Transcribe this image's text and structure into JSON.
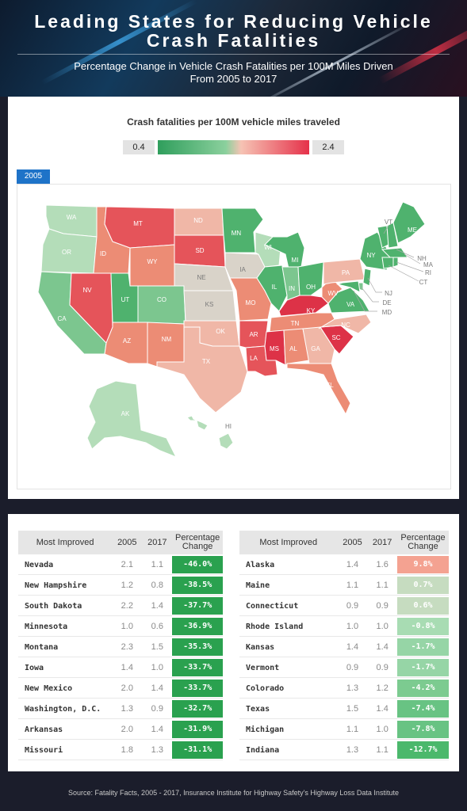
{
  "header": {
    "title_line1": "Leading States for Reducing Vehicle",
    "title_line2": "Crash Fatalities",
    "subtitle_line1": "Percentage Change in Vehicle Crash Fatalities per 100M Miles Driven",
    "subtitle_line2": "From 2005 to 2017"
  },
  "map": {
    "legend_title": "Crash fatalities per 100M vehicle miles traveled",
    "legend_min": "0.4",
    "legend_max": "2.4",
    "year_tab": "2005",
    "colors": {
      "dark_green": "#4fb26e",
      "med_green": "#7cc68f",
      "light_green": "#b4ddb9",
      "neutral": "#d9d3c9",
      "light_pink": "#f0b7a7",
      "salmon": "#ec8c75",
      "red": "#e5545a",
      "dark_red": "#dd3247"
    },
    "state_labels": {
      "WA": "WA",
      "OR": "OR",
      "CA": "CA",
      "ID": "ID",
      "NV": "NV",
      "MT": "MT",
      "WY": "WY",
      "UT": "UT",
      "AZ": "AZ",
      "CO": "CO",
      "NM": "NM",
      "ND": "ND",
      "SD": "SD",
      "NE": "NE",
      "KS": "KS",
      "OK": "OK",
      "TX": "TX",
      "MN": "MN",
      "IA": "IA",
      "MO": "MO",
      "AR": "AR",
      "LA": "LA",
      "WI": "WI",
      "IL": "IL",
      "MI": "MI",
      "IN": "IN",
      "OH": "OH",
      "KY": "KY",
      "TN": "TN",
      "MS": "MS",
      "AL": "AL",
      "GA": "GA",
      "FL": "FL",
      "SC": "SC",
      "NC": "NC",
      "VA": "VA",
      "WV": "WV",
      "PA": "PA",
      "NY": "NY",
      "ME": "ME",
      "VT": "VT",
      "NH": "NH",
      "MA": "MA",
      "RI": "RI",
      "CT": "CT",
      "NJ": "NJ",
      "DE": "DE",
      "MD": "MD",
      "AK": "AK",
      "HI": "HI"
    }
  },
  "tables": {
    "headers": {
      "state": "Most Improved",
      "y2005": "2005",
      "y2017": "2017",
      "pct_line1": "Percentage",
      "pct_line2": "Change"
    },
    "left_rows": [
      {
        "state": "Nevada",
        "v2005": "2.1",
        "v2017": "1.1",
        "pct": "-46.0%",
        "color": "#2aa14f"
      },
      {
        "state": "New Hampshire",
        "v2005": "1.2",
        "v2017": "0.8",
        "pct": "-38.5%",
        "color": "#2aa14f"
      },
      {
        "state": "South Dakota",
        "v2005": "2.2",
        "v2017": "1.4",
        "pct": "-37.7%",
        "color": "#2aa14f"
      },
      {
        "state": "Minnesota",
        "v2005": "1.0",
        "v2017": "0.6",
        "pct": "-36.9%",
        "color": "#2aa14f"
      },
      {
        "state": "Montana",
        "v2005": "2.3",
        "v2017": "1.5",
        "pct": "-35.3%",
        "color": "#2aa14f"
      },
      {
        "state": "Iowa",
        "v2005": "1.4",
        "v2017": "1.0",
        "pct": "-33.7%",
        "color": "#2aa14f"
      },
      {
        "state": "New Mexico",
        "v2005": "2.0",
        "v2017": "1.4",
        "pct": "-33.7%",
        "color": "#2aa14f"
      },
      {
        "state": "Washington, D.C.",
        "v2005": "1.3",
        "v2017": "0.9",
        "pct": "-32.7%",
        "color": "#2aa14f"
      },
      {
        "state": "Arkansas",
        "v2005": "2.0",
        "v2017": "1.4",
        "pct": "-31.9%",
        "color": "#2aa14f"
      },
      {
        "state": "Missouri",
        "v2005": "1.8",
        "v2017": "1.3",
        "pct": "-31.1%",
        "color": "#2aa14f"
      }
    ],
    "right_rows": [
      {
        "state": "Alaska",
        "v2005": "1.4",
        "v2017": "1.6",
        "pct": "9.8%",
        "color": "#f4a291"
      },
      {
        "state": "Maine",
        "v2005": "1.1",
        "v2017": "1.1",
        "pct": "0.7%",
        "color": "#c6dcc0"
      },
      {
        "state": "Connecticut",
        "v2005": "0.9",
        "v2017": "0.9",
        "pct": "0.6%",
        "color": "#c6dcc0"
      },
      {
        "state": "Rhode Island",
        "v2005": "1.0",
        "v2017": "1.0",
        "pct": "-0.8%",
        "color": "#a8dcb3"
      },
      {
        "state": "Kansas",
        "v2005": "1.4",
        "v2017": "1.4",
        "pct": "-1.7%",
        "color": "#96d5a6"
      },
      {
        "state": "Vermont",
        "v2005": "0.9",
        "v2017": "0.9",
        "pct": "-1.7%",
        "color": "#96d5a6"
      },
      {
        "state": "Colorado",
        "v2005": "1.3",
        "v2017": "1.2",
        "pct": "-4.2%",
        "color": "#7ccb90"
      },
      {
        "state": "Texas",
        "v2005": "1.5",
        "v2017": "1.4",
        "pct": "-7.4%",
        "color": "#68c383"
      },
      {
        "state": "Michigan",
        "v2005": "1.1",
        "v2017": "1.0",
        "pct": "-7.8%",
        "color": "#68c383"
      },
      {
        "state": "Indiana",
        "v2005": "1.3",
        "v2017": "1.1",
        "pct": "-12.7%",
        "color": "#4bb86c"
      }
    ]
  },
  "footer": {
    "source": "Source: Fatality Facts, 2005 - 2017, Insurance Institute for Highway Safety's Highway Loss Data Institute"
  }
}
